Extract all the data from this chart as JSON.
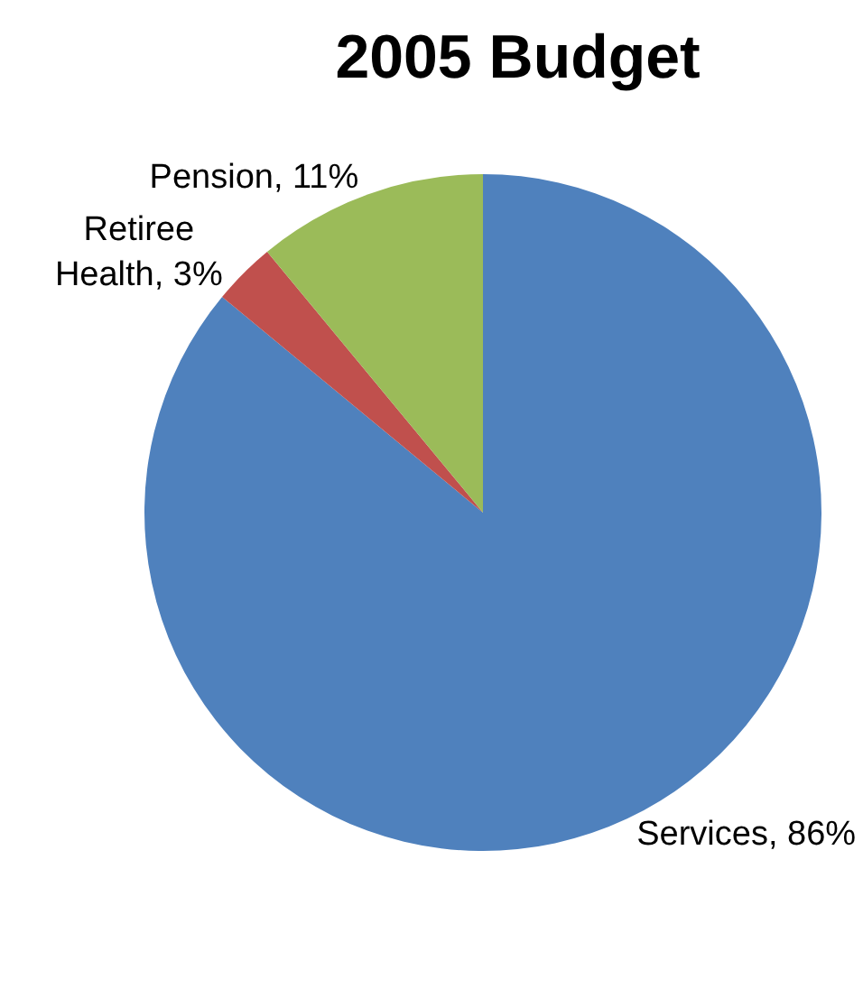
{
  "chart_data": {
    "type": "pie",
    "title": "2005 Budget",
    "categories": [
      "Services",
      "Retiree Health",
      "Pension"
    ],
    "values": [
      86,
      3,
      11
    ],
    "value_labels": [
      "86%",
      "3%",
      "11%"
    ],
    "colors": [
      "#4f81bd",
      "#c0504d",
      "#9bbb59"
    ],
    "legend": false
  }
}
